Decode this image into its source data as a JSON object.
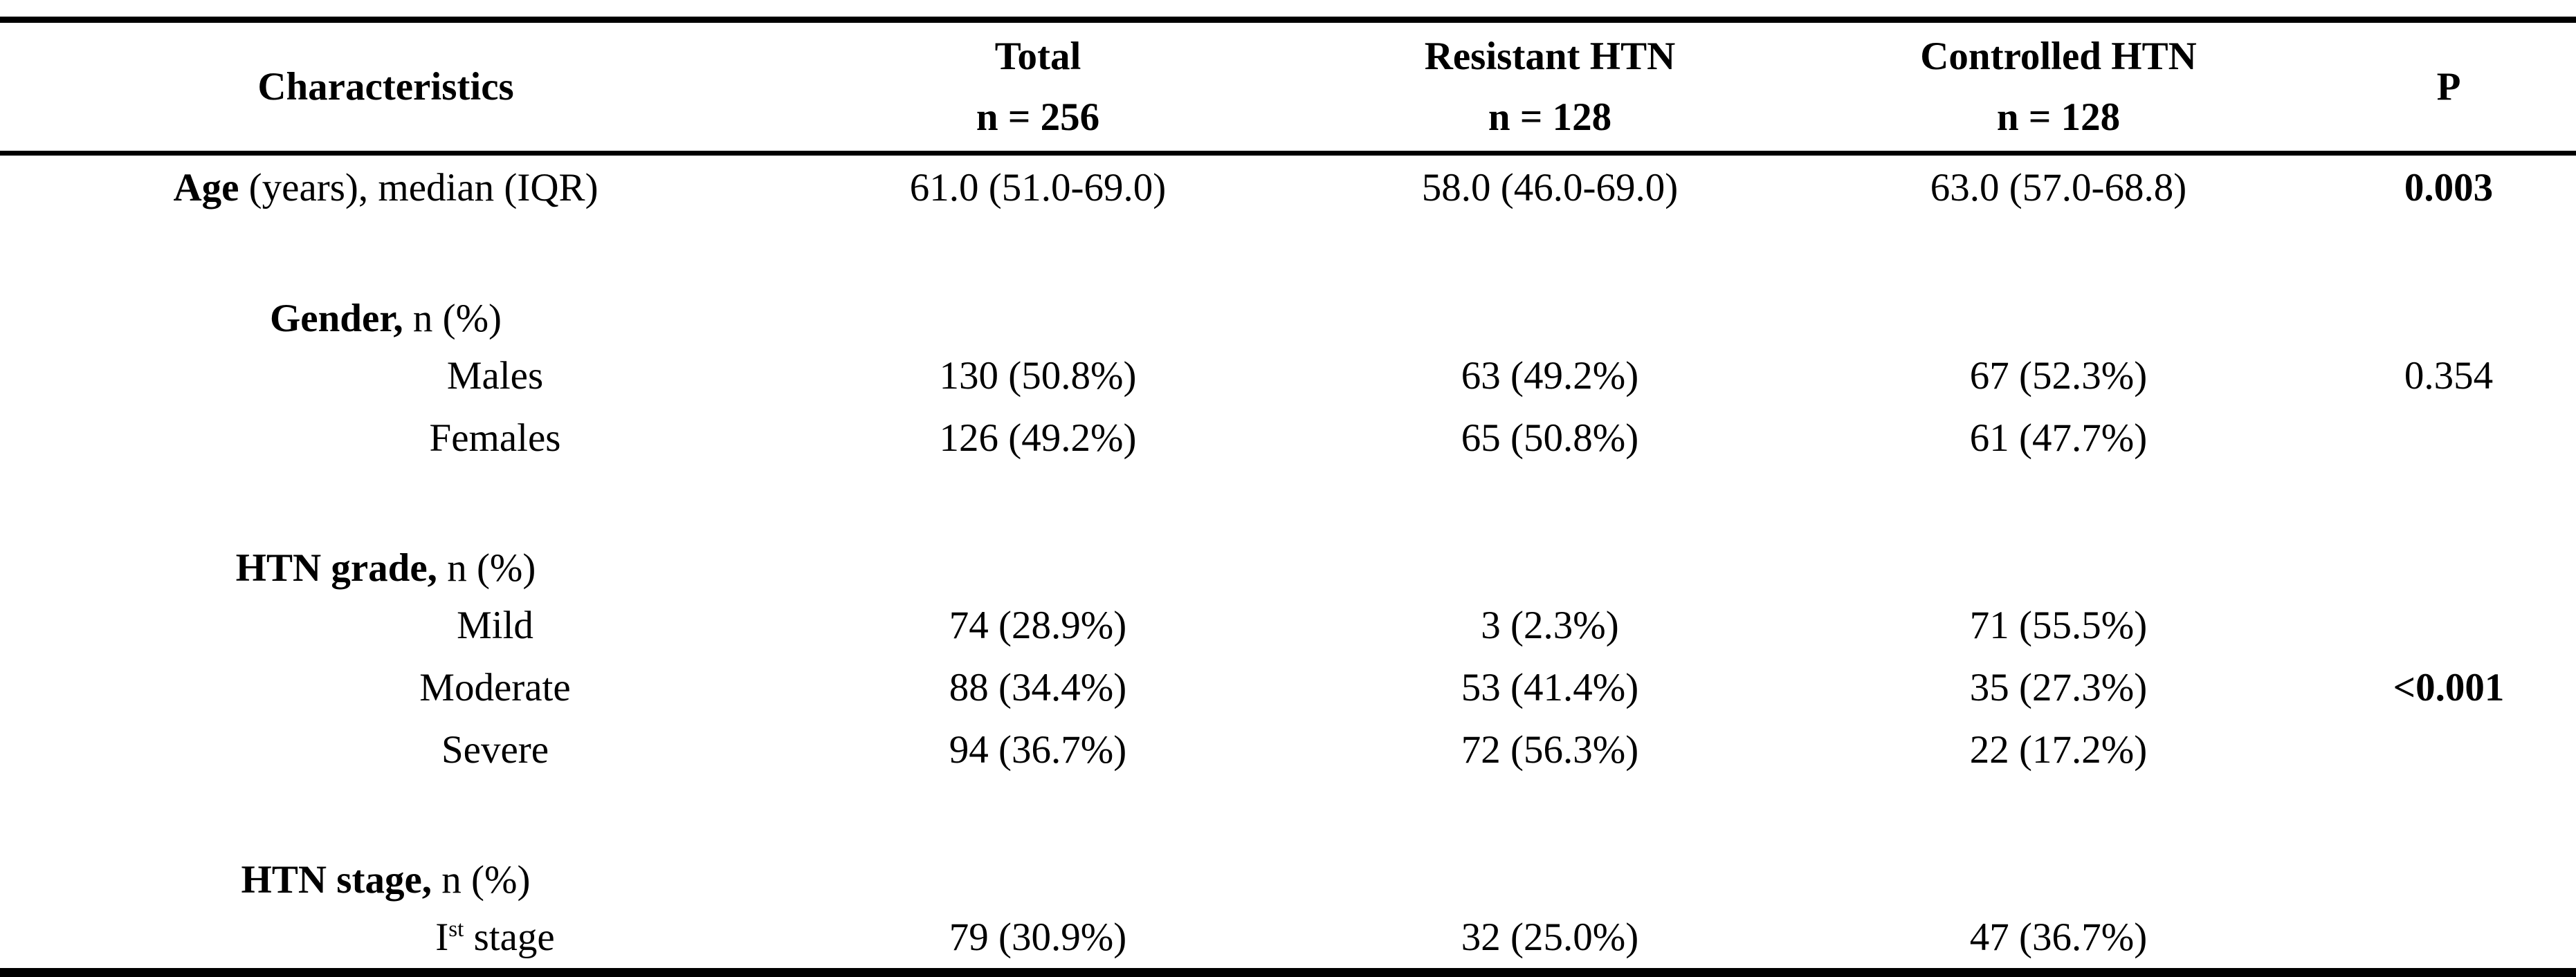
{
  "table": {
    "title_semantic": "Baseline characteristics of study population",
    "columns": {
      "characteristics": "Characteristics",
      "total_line1": "Total",
      "total_line2": "n = 256",
      "resistant_line1": "Resistant HTN",
      "resistant_line2": "n = 128",
      "controlled_line1": "Controlled HTN",
      "controlled_line2": "n = 128",
      "p": "P"
    },
    "rows": {
      "age": {
        "label_bold": "Age",
        "label_rest": " (years), median (IQR)",
        "total": "61.0 (51.0-69.0)",
        "resistant": "58.0 (46.0-69.0)",
        "controlled": "63.0 (57.0-68.8)",
        "p": "0.003"
      },
      "gender_header": {
        "label_bold": "Gender,",
        "label_rest": " n (%)"
      },
      "males": {
        "label": "Males",
        "total": "130 (50.8%)",
        "resistant": "63 (49.2%)",
        "controlled": "67 (52.3%)",
        "p": "0.354"
      },
      "females": {
        "label": "Females",
        "total": "126 (49.2%)",
        "resistant": "65 (50.8%)",
        "controlled": "61 (47.7%)"
      },
      "htn_grade_header": {
        "label_bold": "HTN grade,",
        "label_rest": " n (%)"
      },
      "mild": {
        "label": "Mild",
        "total": "74 (28.9%)",
        "resistant": "3 (2.3%)",
        "controlled": "71 (55.5%)"
      },
      "moderate": {
        "label": "Moderate",
        "total": "88 (34.4%)",
        "resistant": "53 (41.4%)",
        "controlled": "35 (27.3%)",
        "p": "<0.001"
      },
      "severe": {
        "label": "Severe",
        "total": "94 (36.7%)",
        "resistant": "72 (56.3%)",
        "controlled": "22 (17.2%)"
      },
      "htn_stage_header": {
        "label_bold": "HTN stage,",
        "label_rest": " n (%)"
      },
      "first_stage": {
        "label_pre": "I",
        "label_sup": "st",
        "label_rest": " stage",
        "total": "79 (30.9%)",
        "resistant": "32 (25.0%)",
        "controlled": "47 (36.7%)"
      }
    }
  }
}
